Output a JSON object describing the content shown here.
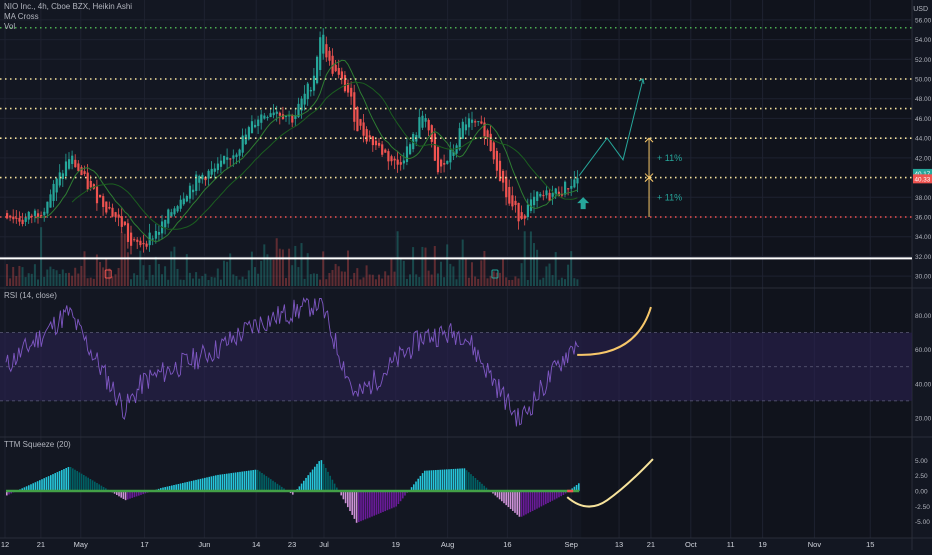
{
  "header": {
    "symbol_line": "NIO Inc., 4h, Cboe BZX, Heikin Ashi",
    "indicator_1": "MA Cross",
    "indicator_2": "Vol",
    "currency": "USD"
  },
  "colors": {
    "background": "#131722",
    "grid": "#1e2230",
    "up": "#26a69a",
    "down": "#ef5350",
    "ma_fast": "#1b5e20",
    "ma_slow": "#2e7d32",
    "projection": "#26a69a",
    "yellow_dots": "#f7e39c",
    "green_dots": "#4caf50",
    "red_dots": "#ef5350",
    "white_line": "#ffffff",
    "annotation_orange": "#f7c76a",
    "rsi_line": "#7e57c2",
    "rsi_band": "#2a2150",
    "squeeze_pos_strong": "#26c6da",
    "squeeze_pos_weak": "#006064",
    "squeeze_neg_strong": "#ce93d8",
    "squeeze_neg_weak": "#6a1b9a",
    "squeeze_dots_on": "#43a047",
    "squeeze_dots_off": "#ef5350"
  },
  "chart_data": [
    {
      "type": "candlestick",
      "title": "NIO Inc., 4h, Cboe BZX, Heikin Ashi",
      "ylabel": "USD",
      "ylim": [
        29,
        57
      ],
      "y_ticks": [
        "56.00",
        "54.00",
        "52.00",
        "50.00",
        "48.00",
        "46.00",
        "44.00",
        "42.00",
        "38.00",
        "36.00",
        "34.00",
        "32.00",
        "30.00"
      ],
      "last_price_labels": [
        "40.17",
        "40.33"
      ],
      "key_points_date_close": [
        [
          "Apr 12",
          36.4
        ],
        [
          "Apr 16",
          35.6
        ],
        [
          "Apr 21",
          36.8
        ],
        [
          "Apr 26",
          40.5
        ],
        [
          "Apr 28",
          42.2
        ],
        [
          "May 3",
          38.8
        ],
        [
          "May 7",
          37.2
        ],
        [
          "May 12",
          34.8
        ],
        [
          "May 13",
          32.9
        ],
        [
          "May 17",
          33.6
        ],
        [
          "May 21",
          35.0
        ],
        [
          "May 26",
          38.2
        ],
        [
          "May 31",
          40.2
        ],
        [
          "Jun 4",
          40.8
        ],
        [
          "Jun 9",
          43.0
        ],
        [
          "Jun 14",
          46.1
        ],
        [
          "Jun 18",
          47.0
        ],
        [
          "Jun 23",
          46.0
        ],
        [
          "Jun 28",
          50.0
        ],
        [
          "Jun 30",
          55.1
        ],
        [
          "Jul 2",
          51.5
        ],
        [
          "Jul 7",
          48.5
        ],
        [
          "Jul 9",
          45.2
        ],
        [
          "Jul 14",
          43.2
        ],
        [
          "Jul 19",
          41.2
        ],
        [
          "Jul 23",
          43.8
        ],
        [
          "Jul 26",
          47.0
        ],
        [
          "Jul 29",
          40.2
        ],
        [
          "Aug 2",
          42.6
        ],
        [
          "Aug 5",
          45.8
        ],
        [
          "Aug 10",
          44.7
        ],
        [
          "Aug 13",
          41.5
        ],
        [
          "Aug 16",
          37.4
        ],
        [
          "Aug 19",
          36.0
        ],
        [
          "Aug 23",
          37.9
        ],
        [
          "Aug 27",
          38.3
        ],
        [
          "Aug 30",
          38.9
        ],
        [
          "Sep 3",
          40.2
        ]
      ],
      "horizontal_levels": [
        {
          "price": 55.2,
          "style": "dotted",
          "color": "green"
        },
        {
          "price": 50.0,
          "style": "dotted",
          "color": "yellow"
        },
        {
          "price": 47.0,
          "style": "dotted",
          "color": "yellow"
        },
        {
          "price": 44.0,
          "style": "dotted",
          "color": "yellow"
        },
        {
          "price": 40.0,
          "style": "dotted",
          "color": "yellow"
        },
        {
          "price": 36.0,
          "style": "dotted",
          "color": "red"
        },
        {
          "price": 31.8,
          "style": "solid",
          "color": "white"
        }
      ],
      "projection_path": [
        [
          "Sep 3",
          40.2
        ],
        [
          "Sep 10",
          44.0
        ],
        [
          "Sep 14",
          41.8
        ],
        [
          "Sep 19",
          50.0
        ]
      ],
      "annotations": [
        "+ 11%",
        "+ 11%"
      ],
      "annotation_ranges": [
        [
          40.0,
          44.0
        ],
        [
          36.0,
          40.0
        ]
      ]
    },
    {
      "type": "line",
      "title": "RSI (14, close)",
      "ylim": [
        10,
        95
      ],
      "y_ticks": [
        "80.00",
        "60.00",
        "40.00",
        "20.00"
      ],
      "bands": [
        30,
        70
      ],
      "key_points_date_value": [
        [
          "Apr 12",
          50
        ],
        [
          "Apr 28",
          82
        ],
        [
          "May 12",
          25
        ],
        [
          "May 17",
          42
        ],
        [
          "Jun 4",
          60
        ],
        [
          "Jun 14",
          75
        ],
        [
          "Jun 30",
          88
        ],
        [
          "Jul 9",
          32
        ],
        [
          "Jul 26",
          68
        ],
        [
          "Aug 5",
          70
        ],
        [
          "Aug 19",
          18
        ],
        [
          "Aug 30",
          55
        ],
        [
          "Sep 3",
          66
        ]
      ]
    },
    {
      "type": "bar",
      "title": "TTM Squeeze (20)",
      "ylim": [
        -7,
        7
      ],
      "y_ticks": [
        "5.00",
        "2.50",
        "0.00",
        "-2.50",
        "-5.00"
      ],
      "key_points_date_value": [
        [
          "Apr 12",
          -0.8
        ],
        [
          "Apr 28",
          4.0
        ],
        [
          "May 12",
          -1.5
        ],
        [
          "May 21",
          0.5
        ],
        [
          "Jun 4",
          2.6
        ],
        [
          "Jun 14",
          3.5
        ],
        [
          "Jun 23",
          -0.6
        ],
        [
          "Jun 30",
          5.2
        ],
        [
          "Jul 9",
          -5.2
        ],
        [
          "Jul 19",
          -2.5
        ],
        [
          "Jul 26",
          3.3
        ],
        [
          "Aug 5",
          3.7
        ],
        [
          "Aug 19",
          -4.3
        ],
        [
          "Aug 30",
          -0.6
        ],
        [
          "Sep 3",
          1.4
        ]
      ]
    }
  ],
  "x_axis": {
    "labels": [
      "12",
      "21",
      "May",
      "17",
      "Jun",
      "14",
      "23",
      "Jul",
      "19",
      "Aug",
      "16",
      "Sep",
      "13",
      "21",
      "Oct",
      "11",
      "19",
      "Nov",
      "15"
    ]
  }
}
